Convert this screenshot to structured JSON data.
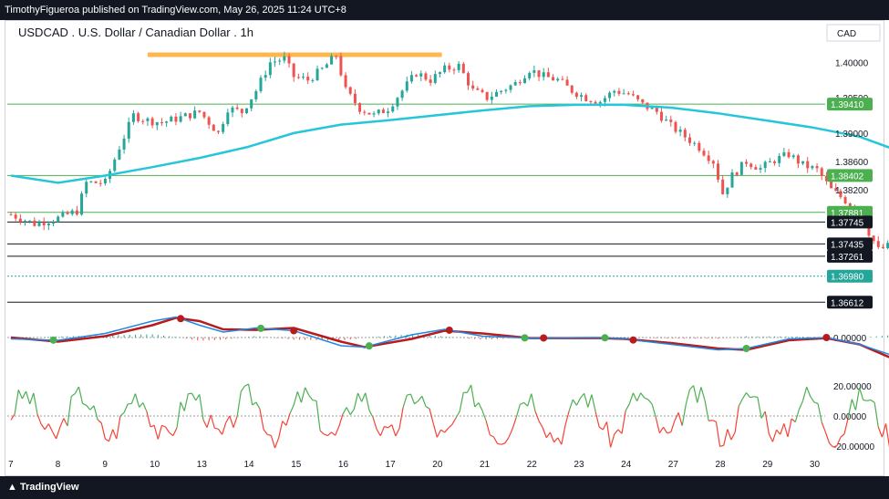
{
  "header": {
    "published": "TimothyFigueroa published on TradingView.com, May 26, 2025 11:24 UTC+8"
  },
  "footer": {
    "brand": "TradingView"
  },
  "symbol_title": "USDCAD . U.S. Dollar / Canadian Dollar . 1h",
  "currency": "CAD",
  "colors": {
    "up": "#26a69a",
    "down": "#ef5350",
    "ma": "#26c6da",
    "macd": "#1e88e5",
    "signal": "#b71c1c",
    "oscillator_up": "#4caf50",
    "oscillator_down": "#f44336",
    "resistance_highlight": "#ffb74d"
  },
  "chart_data": [
    {
      "type": "candlestick",
      "title": "USDCAD . U.S. Dollar / Canadian Dollar . 1h",
      "x_tick_labels": [
        "7",
        "8",
        "9",
        "10",
        "13",
        "14",
        "15",
        "16",
        "17",
        "20",
        "21",
        "22",
        "23",
        "24",
        "27",
        "28",
        "29",
        "30"
      ],
      "y_axis": {
        "ylim": [
          1.365,
          1.403
        ],
        "tick_labels": [
          "1.40000",
          "1.39500",
          "1.39000",
          "1.38600",
          "1.38200"
        ]
      },
      "price_levels": [
        {
          "label": "1.39410",
          "value": 1.3941,
          "color": "#4caf50",
          "line": "#4caf50"
        },
        {
          "label": "1.38402",
          "value": 1.38402,
          "color": "#4caf50",
          "line": "#4caf50"
        },
        {
          "label": "1.37881",
          "value": 1.37881,
          "color": "#4caf50",
          "line": "#4caf50"
        },
        {
          "label": "1.37745",
          "value": 1.37745,
          "color": "#131722",
          "line": "#131722"
        },
        {
          "label": "1.37435",
          "value": 1.37435,
          "color": "#131722",
          "line": "#131722"
        },
        {
          "label": "1.37261",
          "value": 1.37261,
          "color": "#131722",
          "line": "#131722"
        },
        {
          "label": "1.36980",
          "value": 1.3698,
          "color": "#26a69a",
          "line": "#26a69a"
        },
        {
          "label": "1.36612",
          "value": 1.36612,
          "color": "#131722",
          "line": "#131722"
        }
      ],
      "resistance_zone": {
        "value": 1.401,
        "from_day": 9.9,
        "to_day": 13.8
      },
      "close_path": [
        [
          0,
          1.3785
        ],
        [
          0.5,
          1.3772
        ],
        [
          1,
          1.378
        ],
        [
          1.4,
          1.379
        ],
        [
          1.6,
          1.383
        ],
        [
          2,
          1.383
        ],
        [
          2.3,
          1.388
        ],
        [
          2.6,
          1.3925
        ],
        [
          2.9,
          1.3918
        ],
        [
          3.2,
          1.3915
        ],
        [
          3.6,
          1.3922
        ],
        [
          4,
          1.393
        ],
        [
          4.4,
          1.39
        ],
        [
          4.6,
          1.3935
        ],
        [
          4.9,
          1.393
        ],
        [
          5.2,
          1.396
        ],
        [
          5.5,
          1.4
        ],
        [
          5.8,
          1.4005
        ],
        [
          6,
          1.398
        ],
        [
          6.3,
          1.3975
        ],
        [
          6.6,
          1.399
        ],
        [
          6.9,
          1.401
        ],
        [
          7.1,
          1.396
        ],
        [
          7.4,
          1.3935
        ],
        [
          7.7,
          1.3925
        ],
        [
          8.0,
          1.3935
        ],
        [
          8.3,
          1.396
        ],
        [
          8.6,
          1.3985
        ],
        [
          8.9,
          1.3975
        ],
        [
          9.2,
          1.399
        ],
        [
          9.5,
          1.3995
        ],
        [
          9.8,
          1.396
        ],
        [
          10.1,
          1.395
        ],
        [
          10.4,
          1.396
        ],
        [
          10.7,
          1.397
        ],
        [
          11.0,
          1.399
        ],
        [
          11.3,
          1.398
        ],
        [
          11.6,
          1.3975
        ],
        [
          11.9,
          1.396
        ],
        [
          12.2,
          1.395
        ],
        [
          12.5,
          1.3945
        ],
        [
          12.8,
          1.396
        ],
        [
          13.1,
          1.3955
        ],
        [
          13.4,
          1.394
        ],
        [
          13.7,
          1.393
        ],
        [
          14.0,
          1.391
        ],
        [
          14.3,
          1.3895
        ],
        [
          14.6,
          1.388
        ],
        [
          14.9,
          1.386
        ],
        [
          15.1,
          1.3815
        ],
        [
          15.3,
          1.384
        ],
        [
          15.6,
          1.386
        ],
        [
          15.9,
          1.385
        ],
        [
          16.2,
          1.3862
        ],
        [
          16.5,
          1.387
        ],
        [
          16.8,
          1.3855
        ],
        [
          17.1,
          1.3848
        ],
        [
          17.4,
          1.382
        ],
        [
          17.7,
          1.3805
        ],
        [
          18.0,
          1.379
        ],
        [
          18.2,
          1.376
        ],
        [
          18.4,
          1.3735
        ],
        [
          18.6,
          1.374
        ],
        [
          18.8,
          1.3715
        ],
        [
          18.95,
          1.3698
        ]
      ],
      "ma_path": [
        [
          0,
          1.384
        ],
        [
          1,
          1.383
        ],
        [
          2,
          1.384
        ],
        [
          3,
          1.3852
        ],
        [
          4,
          1.3865
        ],
        [
          5,
          1.388
        ],
        [
          6,
          1.39
        ],
        [
          7,
          1.3912
        ],
        [
          8,
          1.3918
        ],
        [
          9,
          1.3925
        ],
        [
          10,
          1.3932
        ],
        [
          11,
          1.3938
        ],
        [
          12,
          1.394
        ],
        [
          13,
          1.394
        ],
        [
          14,
          1.3936
        ],
        [
          15,
          1.3928
        ],
        [
          16,
          1.3918
        ],
        [
          17,
          1.3908
        ],
        [
          18,
          1.3895
        ],
        [
          18.95,
          1.3872
        ]
      ]
    },
    {
      "type": "line",
      "name": "macd_panel",
      "y_tick_labels": [
        "0.00000"
      ],
      "ylim": [
        -1,
        1
      ],
      "macd": [
        [
          0,
          -0.05
        ],
        [
          1,
          -0.1
        ],
        [
          2,
          0.15
        ],
        [
          3,
          0.6
        ],
        [
          3.5,
          0.75
        ],
        [
          4,
          0.45
        ],
        [
          4.5,
          0.2
        ],
        [
          5.2,
          0.35
        ],
        [
          6,
          0.25
        ],
        [
          7,
          -0.3
        ],
        [
          7.5,
          -0.35
        ],
        [
          8.5,
          0.1
        ],
        [
          9.2,
          0.3
        ],
        [
          10,
          0.05
        ],
        [
          11,
          -0.02
        ],
        [
          12.5,
          0.0
        ],
        [
          13,
          -0.05
        ],
        [
          14,
          -0.25
        ],
        [
          15,
          -0.45
        ],
        [
          15.6,
          -0.4
        ],
        [
          16.5,
          -0.05
        ],
        [
          17.3,
          0.0
        ],
        [
          18,
          -0.25
        ],
        [
          18.95,
          -0.8
        ]
      ],
      "signal": [
        [
          0,
          0.0
        ],
        [
          1,
          -0.15
        ],
        [
          2,
          0.05
        ],
        [
          3,
          0.45
        ],
        [
          3.5,
          0.72
        ],
        [
          4,
          0.6
        ],
        [
          4.5,
          0.3
        ],
        [
          5.2,
          0.28
        ],
        [
          6,
          0.35
        ],
        [
          7,
          -0.15
        ],
        [
          7.5,
          -0.35
        ],
        [
          8.5,
          -0.05
        ],
        [
          9.2,
          0.25
        ],
        [
          10,
          0.15
        ],
        [
          11,
          -0.02
        ],
        [
          12.5,
          -0.02
        ],
        [
          13,
          -0.05
        ],
        [
          14,
          -0.2
        ],
        [
          15,
          -0.4
        ],
        [
          15.6,
          -0.45
        ],
        [
          16.5,
          -0.1
        ],
        [
          17.3,
          -0.02
        ],
        [
          18,
          -0.25
        ],
        [
          18.95,
          -0.95
        ]
      ],
      "cross_up": [
        0.9,
        5.3,
        7.6,
        10.9,
        12.6,
        15.6
      ],
      "cross_down": [
        3.6,
        6.0,
        9.3,
        11.3,
        13.2,
        17.3
      ]
    },
    {
      "type": "line",
      "name": "oscillator_panel",
      "y_tick_labels": [
        "20.00000",
        "0.00000",
        "-20.00000"
      ],
      "ylim": [
        -25,
        28
      ]
    }
  ]
}
